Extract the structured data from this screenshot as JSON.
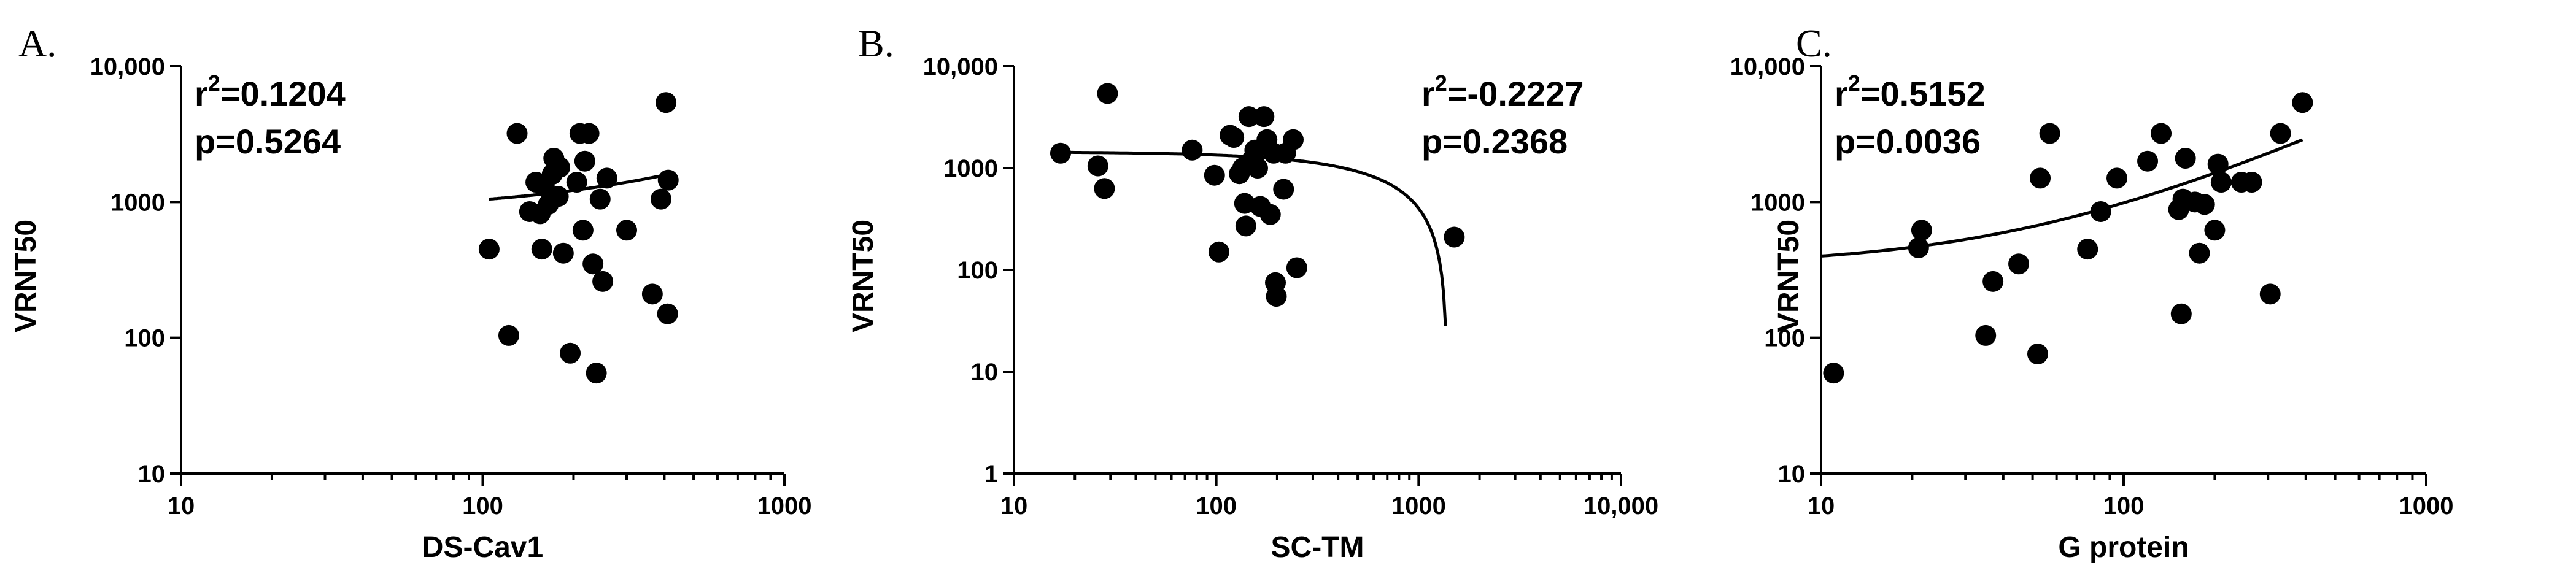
{
  "chart_data": [
    {
      "type": "scatter",
      "panel_label": "A.",
      "xlabel": "DS-Cav1",
      "ylabel": "VRNT50",
      "xscale": "log",
      "yscale": "log",
      "xlim": [
        10,
        1000
      ],
      "ylim": [
        10,
        10000
      ],
      "xticks": [
        10,
        100,
        1000
      ],
      "xtick_labels": [
        "10",
        "100",
        "1000"
      ],
      "yticks": [
        10,
        100,
        1000,
        10000
      ],
      "ytick_labels": [
        "10",
        "100",
        "1000",
        "10,000"
      ],
      "minor_per_decade_x": true,
      "minor_per_decade_y": false,
      "stats": {
        "r2_prefix": "r",
        "r2_sup": "2",
        "r2_value": "=0.1204",
        "p_text": "p=0.5264"
      },
      "stats_position": "top-left",
      "fit": {
        "kind": "linear",
        "x_start": 105,
        "x_end": 410
      },
      "points": [
        {
          "x": 105,
          "y": 450
        },
        {
          "x": 122,
          "y": 104
        },
        {
          "x": 130,
          "y": 3200
        },
        {
          "x": 143,
          "y": 850
        },
        {
          "x": 150,
          "y": 1400
        },
        {
          "x": 155,
          "y": 820
        },
        {
          "x": 157,
          "y": 450
        },
        {
          "x": 160,
          "y": 1300
        },
        {
          "x": 165,
          "y": 960
        },
        {
          "x": 170,
          "y": 1600
        },
        {
          "x": 172,
          "y": 2100
        },
        {
          "x": 178,
          "y": 1100
        },
        {
          "x": 180,
          "y": 1800
        },
        {
          "x": 185,
          "y": 420
        },
        {
          "x": 195,
          "y": 77
        },
        {
          "x": 205,
          "y": 1400
        },
        {
          "x": 210,
          "y": 3200
        },
        {
          "x": 215,
          "y": 620
        },
        {
          "x": 218,
          "y": 2000
        },
        {
          "x": 225,
          "y": 3200
        },
        {
          "x": 232,
          "y": 350
        },
        {
          "x": 238,
          "y": 55
        },
        {
          "x": 245,
          "y": 1050
        },
        {
          "x": 250,
          "y": 260
        },
        {
          "x": 258,
          "y": 1500
        },
        {
          "x": 300,
          "y": 620
        },
        {
          "x": 365,
          "y": 210
        },
        {
          "x": 390,
          "y": 1050
        },
        {
          "x": 405,
          "y": 5400
        },
        {
          "x": 410,
          "y": 150
        },
        {
          "x": 412,
          "y": 1450
        }
      ]
    },
    {
      "type": "scatter",
      "panel_label": "B.",
      "xlabel": "SC-TM",
      "ylabel": "VRNT50",
      "xscale": "log",
      "yscale": "log",
      "xlim": [
        10,
        10000
      ],
      "ylim": [
        1,
        10000
      ],
      "xticks": [
        10,
        100,
        1000,
        10000
      ],
      "xtick_labels": [
        "10",
        "100",
        "1000",
        "10,000"
      ],
      "yticks": [
        1,
        10,
        100,
        1000,
        10000
      ],
      "ytick_labels": [
        "1",
        "10",
        "100",
        "1000",
        "10,000"
      ],
      "minor_per_decade_x": true,
      "minor_per_decade_y": false,
      "stats": {
        "r2_prefix": "r",
        "r2_sup": "2",
        "r2_value": "=-0.2227",
        "p_text": "p=0.2368"
      },
      "stats_position": "top-right",
      "fit": {
        "kind": "linear",
        "x_start": 16,
        "x_end": 1358
      },
      "points": [
        {
          "x": 17,
          "y": 1400
        },
        {
          "x": 26,
          "y": 1050
        },
        {
          "x": 28,
          "y": 630
        },
        {
          "x": 29,
          "y": 5400
        },
        {
          "x": 76,
          "y": 1500
        },
        {
          "x": 98,
          "y": 850
        },
        {
          "x": 103,
          "y": 150
        },
        {
          "x": 117,
          "y": 2100
        },
        {
          "x": 122,
          "y": 2000
        },
        {
          "x": 130,
          "y": 880
        },
        {
          "x": 135,
          "y": 1000
        },
        {
          "x": 138,
          "y": 450
        },
        {
          "x": 140,
          "y": 270
        },
        {
          "x": 145,
          "y": 3200
        },
        {
          "x": 150,
          "y": 1200
        },
        {
          "x": 155,
          "y": 1500
        },
        {
          "x": 160,
          "y": 1000
        },
        {
          "x": 165,
          "y": 420
        },
        {
          "x": 172,
          "y": 3200
        },
        {
          "x": 178,
          "y": 1900
        },
        {
          "x": 185,
          "y": 350
        },
        {
          "x": 192,
          "y": 1400
        },
        {
          "x": 196,
          "y": 75
        },
        {
          "x": 198,
          "y": 55
        },
        {
          "x": 215,
          "y": 620
        },
        {
          "x": 220,
          "y": 1400
        },
        {
          "x": 240,
          "y": 1900
        },
        {
          "x": 250,
          "y": 105
        },
        {
          "x": 1500,
          "y": 210
        }
      ]
    },
    {
      "type": "scatter",
      "panel_label": "C.",
      "xlabel": "G protein",
      "ylabel": "VRNT50",
      "xscale": "log",
      "yscale": "log",
      "xlim": [
        10,
        1000
      ],
      "ylim": [
        10,
        10000
      ],
      "xticks": [
        10,
        100,
        1000
      ],
      "xtick_labels": [
        "10",
        "100",
        "1000"
      ],
      "yticks": [
        10,
        100,
        1000,
        10000
      ],
      "ytick_labels": [
        "10",
        "100",
        "1000",
        "10,000"
      ],
      "minor_per_decade_x": true,
      "minor_per_decade_y": false,
      "stats": {
        "r2_prefix": "r",
        "r2_sup": "2",
        "r2_value": "=0.5152",
        "p_text": "p=0.0036"
      },
      "stats_position": "top-left",
      "fit": {
        "kind": "linear",
        "x_start": 10,
        "x_end": 390
      },
      "points": [
        {
          "x": 11,
          "y": 55
        },
        {
          "x": 21,
          "y": 460
        },
        {
          "x": 21.5,
          "y": 620
        },
        {
          "x": 35,
          "y": 104
        },
        {
          "x": 37,
          "y": 260
        },
        {
          "x": 45,
          "y": 350
        },
        {
          "x": 52,
          "y": 76
        },
        {
          "x": 53,
          "y": 1500
        },
        {
          "x": 57,
          "y": 3200
        },
        {
          "x": 76,
          "y": 450
        },
        {
          "x": 84,
          "y": 850
        },
        {
          "x": 95,
          "y": 1500
        },
        {
          "x": 120,
          "y": 2000
        },
        {
          "x": 133,
          "y": 3200
        },
        {
          "x": 152,
          "y": 880
        },
        {
          "x": 155,
          "y": 150
        },
        {
          "x": 157,
          "y": 1050
        },
        {
          "x": 160,
          "y": 2100
        },
        {
          "x": 172,
          "y": 1000
        },
        {
          "x": 178,
          "y": 420
        },
        {
          "x": 185,
          "y": 960
        },
        {
          "x": 200,
          "y": 620
        },
        {
          "x": 205,
          "y": 1900
        },
        {
          "x": 210,
          "y": 1400
        },
        {
          "x": 245,
          "y": 1400
        },
        {
          "x": 265,
          "y": 1400
        },
        {
          "x": 305,
          "y": 210
        },
        {
          "x": 330,
          "y": 3200
        },
        {
          "x": 390,
          "y": 5400
        }
      ]
    }
  ]
}
